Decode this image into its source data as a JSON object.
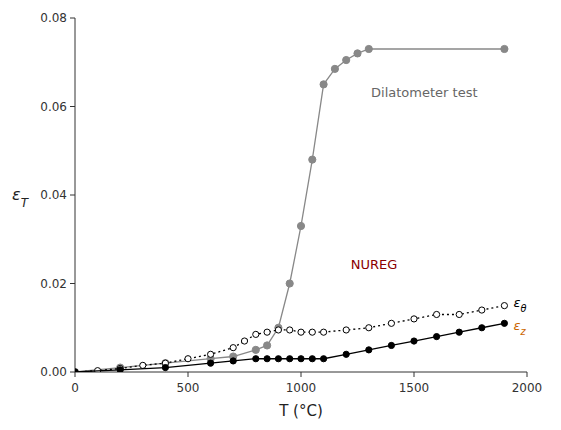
{
  "chart_data": {
    "type": "line",
    "xlabel": "T (°C)",
    "ylabel": "εT",
    "xlim": [
      0,
      2000
    ],
    "ylim": [
      0.0,
      0.08
    ],
    "xticks": [
      0,
      500,
      1000,
      1500,
      2000
    ],
    "yticks": [
      {
        "value": 0.0,
        "label": "0.00"
      },
      0.02,
      0.04,
      0.06,
      0.08
    ],
    "grid": false,
    "series": [
      {
        "color": "#888888",
        "marker": "circle",
        "line_style": "solid",
        "x": [
          0,
          200,
          400,
          600,
          700,
          800,
          850,
          900,
          950,
          1000,
          1050,
          1100,
          1150,
          1200,
          1250,
          1300,
          1900
        ],
        "values": [
          0.0,
          0.001,
          0.002,
          0.003,
          0.0035,
          0.005,
          0.006,
          0.01,
          0.02,
          0.033,
          0.048,
          0.065,
          0.0685,
          0.0705,
          0.072,
          0.073,
          0.073
        ]
      },
      {
        "color": "#000000",
        "marker": "open-circle",
        "line_style": "dotted",
        "x": [
          0,
          100,
          200,
          300,
          400,
          500,
          600,
          700,
          750,
          800,
          850,
          900,
          950,
          1000,
          1050,
          1100,
          1200,
          1300,
          1400,
          1500,
          1600,
          1700,
          1800,
          1900
        ],
        "values": [
          0.0,
          0.0003,
          0.0008,
          0.0015,
          0.002,
          0.003,
          0.004,
          0.0055,
          0.007,
          0.0085,
          0.009,
          0.0095,
          0.0095,
          0.009,
          0.009,
          0.009,
          0.0095,
          0.01,
          0.011,
          0.012,
          0.013,
          0.013,
          0.014,
          0.015
        ]
      },
      {
        "color": "#000000",
        "marker": "circle",
        "line_style": "solid",
        "x": [
          0,
          200,
          400,
          600,
          700,
          800,
          850,
          900,
          950,
          1000,
          1050,
          1100,
          1200,
          1300,
          1400,
          1500,
          1600,
          1700,
          1800,
          1900
        ],
        "values": [
          0.0,
          0.0005,
          0.001,
          0.002,
          0.0025,
          0.003,
          0.003,
          0.003,
          0.003,
          0.003,
          0.003,
          0.003,
          0.004,
          0.005,
          0.006,
          0.007,
          0.008,
          0.009,
          0.01,
          0.011
        ]
      }
    ],
    "annotations": [
      {
        "text": "Dilatometer test",
        "x": 1310,
        "y": 0.063,
        "color": "#666666"
      },
      {
        "text": "NUREG",
        "x": 1220,
        "y": 0.024,
        "color": "#8B0000"
      },
      {
        "text": "εθ",
        "x": 1940,
        "y": 0.0155,
        "color": "#000000"
      },
      {
        "text": "εz",
        "x": 1940,
        "y": 0.0105,
        "color": "#cc6600"
      }
    ]
  }
}
